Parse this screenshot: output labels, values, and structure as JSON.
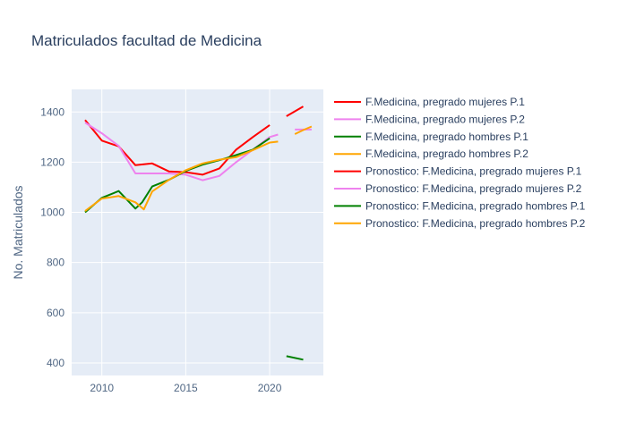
{
  "chart_data": {
    "type": "line",
    "title": "Matriculados facultad de Medicina",
    "xlabel": "",
    "ylabel": "No. Matriculados",
    "xlim": [
      2008.2,
      2023.2
    ],
    "ylim": [
      350,
      1490
    ],
    "x_ticks": [
      2010,
      2015,
      2020
    ],
    "x_tick_labels": [
      "2010",
      "2015",
      "2020"
    ],
    "y_ticks": [
      400,
      600,
      800,
      1000,
      1200,
      1400
    ],
    "y_tick_labels": [
      "400",
      "600",
      "800",
      "1000",
      "1200",
      "1400"
    ],
    "grid": true,
    "legend_position": "right",
    "series": [
      {
        "name": "F.Medicina, pregrado mujeres P.1",
        "color": "#ff0000",
        "x": [
          2009,
          2010,
          2011,
          2012,
          2013,
          2014,
          2015,
          2016,
          2017,
          2018,
          2019,
          2020
        ],
        "values": [
          1368,
          1286,
          1263,
          1188,
          1195,
          1163,
          1160,
          1150,
          1175,
          1250,
          1300,
          1348
        ]
      },
      {
        "name": "F.Medicina, pregrado mujeres P.2",
        "color": "#ee82ee",
        "x": [
          2009,
          2010,
          2011,
          2012,
          2013,
          2014,
          2015,
          2016,
          2017,
          2018,
          2019,
          2020,
          2020.5
        ],
        "values": [
          1358,
          1315,
          1265,
          1155,
          1155,
          1155,
          1150,
          1128,
          1145,
          1200,
          1250,
          1300,
          1310
        ]
      },
      {
        "name": "F.Medicina, pregrado hombres P.1",
        "color": "#008000",
        "x": [
          2009,
          2010,
          2011,
          2012,
          2012.4,
          2013,
          2014,
          2015,
          2016,
          2017,
          2018,
          2019,
          2020
        ],
        "values": [
          1000,
          1058,
          1085,
          1015,
          1040,
          1103,
          1130,
          1165,
          1190,
          1208,
          1228,
          1250,
          1295
        ]
      },
      {
        "name": "F.Medicina, pregrado hombres P.2",
        "color": "#ffa500",
        "x": [
          2009,
          2010,
          2011,
          2012,
          2012.5,
          2013,
          2014,
          2015,
          2016,
          2017,
          2018,
          2019,
          2020,
          2020.5
        ],
        "values": [
          1005,
          1055,
          1065,
          1040,
          1012,
          1083,
          1130,
          1168,
          1195,
          1210,
          1220,
          1248,
          1278,
          1282
        ]
      },
      {
        "name": "Pronostico: F.Medicina, pregrado mujeres P.1",
        "color": "#ff0000",
        "x": [
          2021,
          2022
        ],
        "values": [
          1383,
          1422
        ]
      },
      {
        "name": "Pronostico: F.Medicina, pregrado mujeres P.2",
        "color": "#ee82ee",
        "x": [
          2021.5,
          2022,
          2022.5
        ],
        "values": [
          1330,
          1330,
          1330
        ]
      },
      {
        "name": "Pronostico: F.Medicina, pregrado hombres P.1",
        "color": "#008000",
        "x": [
          2021,
          2022
        ],
        "values": [
          427,
          413
        ]
      },
      {
        "name": "Pronostico: F.Medicina, pregrado hombres P.2",
        "color": "#ffa500",
        "x": [
          2021.5,
          2022,
          2022.5
        ],
        "values": [
          1312,
          1328,
          1342
        ]
      }
    ]
  }
}
